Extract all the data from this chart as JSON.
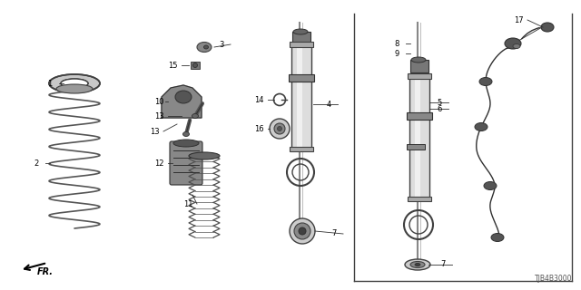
{
  "bg_color": "#ffffff",
  "footer_text": "TJB4B3000",
  "fr_label": "FR.",
  "diagram_color": "#404040"
}
